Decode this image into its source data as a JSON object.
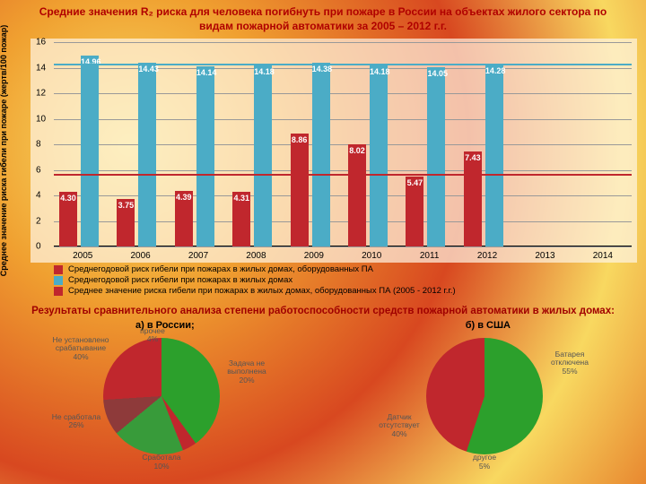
{
  "title_html": "Средние значения R₂ риска для человека погибнуть при пожаре в России на объектах жилого сектора по видам пожарной автоматики за 2005 – 2012 г.г.",
  "title_color": "#b00000",
  "bar_chart": {
    "type": "bar",
    "ylabel": "Среднее значение риска гибели\nпри пожаре (жертв/100 пожар)",
    "ymax": 16,
    "ytick_step": 2,
    "bar_colors": {
      "red": "#c0272d",
      "blue": "#4bacc6"
    },
    "avg_lines": {
      "red": 5.7,
      "blue": 14.3
    },
    "years": [
      "2005",
      "2006",
      "2007",
      "2008",
      "2009",
      "2010",
      "2011",
      "2012",
      "2013",
      "2014"
    ],
    "series_red": [
      4.3,
      3.75,
      4.39,
      4.31,
      8.86,
      8.02,
      5.47,
      7.43,
      null,
      null
    ],
    "series_blue": [
      14.96,
      14.43,
      14.14,
      14.18,
      14.38,
      14.18,
      14.05,
      14.28,
      null,
      null
    ],
    "legend": [
      {
        "color": "#c0272d",
        "label": "Среднегодовой риск гибели при пожарах в жилых домах, оборудованных ПА"
      },
      {
        "color": "#4bacc6",
        "label": "Среднегодовой риск гибели при пожарах в жилых домах"
      },
      {
        "color": "#c0272d",
        "label": "Среднее значение риска гибели при пожарах в жилых домах, оборудованных ПА (2005 - 2012 г.г.)"
      }
    ]
  },
  "subtitle": "Результаты сравнительного анализа степени работоспособности средств пожарной автоматики в жилых домах:",
  "pie_a_label": "а) в России;",
  "pie_b_label": "б) в США",
  "pie_a": {
    "type": "pie",
    "slices": [
      {
        "label": "Не установлено срабатывание",
        "pct": 40,
        "color": "#2ca02c"
      },
      {
        "label": "прочее",
        "pct": 4,
        "color": "#c0272d"
      },
      {
        "label": "Задача не выполнена",
        "pct": 20,
        "color": "#389b3a"
      },
      {
        "label": "Сработала",
        "pct": 10,
        "color": "#8e3a3a"
      },
      {
        "label": "Не сработала",
        "pct": 26,
        "color": "#c0272d"
      }
    ]
  },
  "pie_b": {
    "type": "pie",
    "slices": [
      {
        "label": "Батарея отключена",
        "pct": 55,
        "color": "#2ca02c"
      },
      {
        "label": "другое",
        "pct": 5,
        "color": "#c0272d"
      },
      {
        "label": "Датчик отсутствует",
        "pct": 40,
        "color": "#c0272d"
      }
    ]
  }
}
